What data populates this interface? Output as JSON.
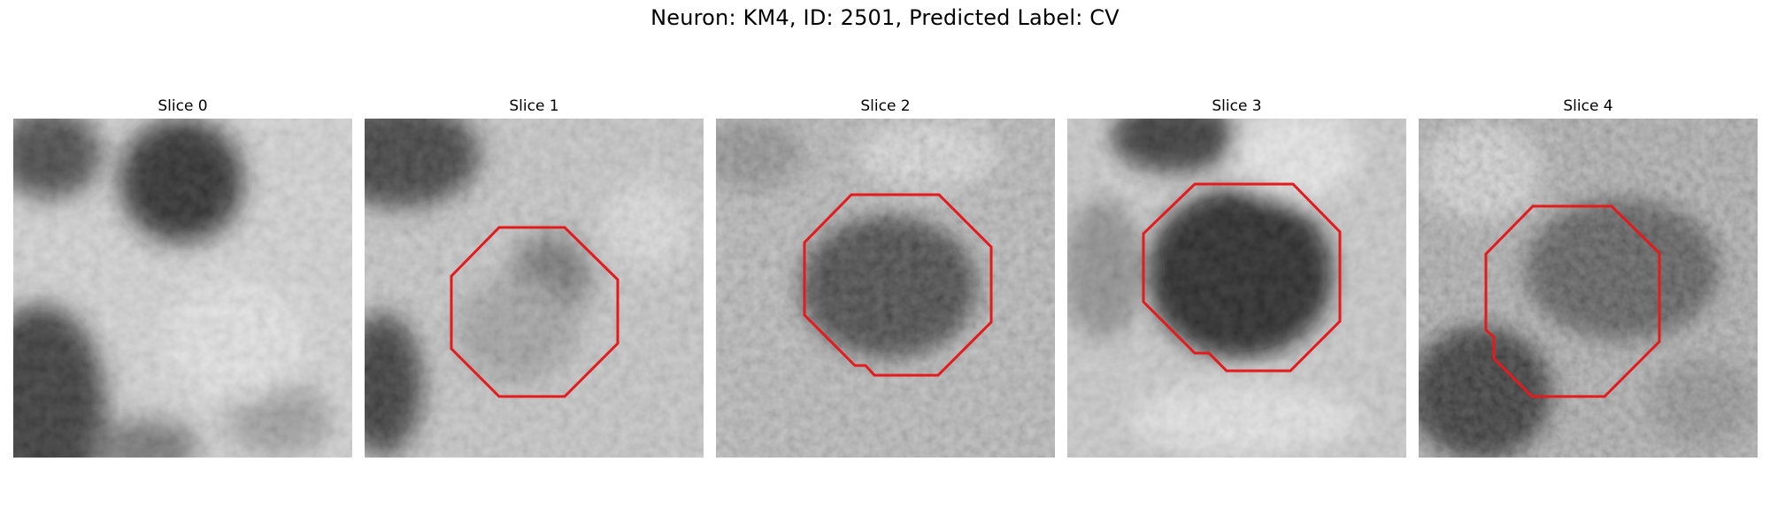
{
  "figure": {
    "title": "Neuron: KM4, ID: 2501, Predicted Label: CV"
  },
  "slices": [
    {
      "title": "Slice 0",
      "has_outline": false
    },
    {
      "title": "Slice 1",
      "has_outline": true
    },
    {
      "title": "Slice 2",
      "has_outline": true
    },
    {
      "title": "Slice 3",
      "has_outline": true
    },
    {
      "title": "Slice 4",
      "has_outline": true
    }
  ],
  "colors": {
    "outline": "#e41a1c",
    "background": "#ffffff"
  }
}
